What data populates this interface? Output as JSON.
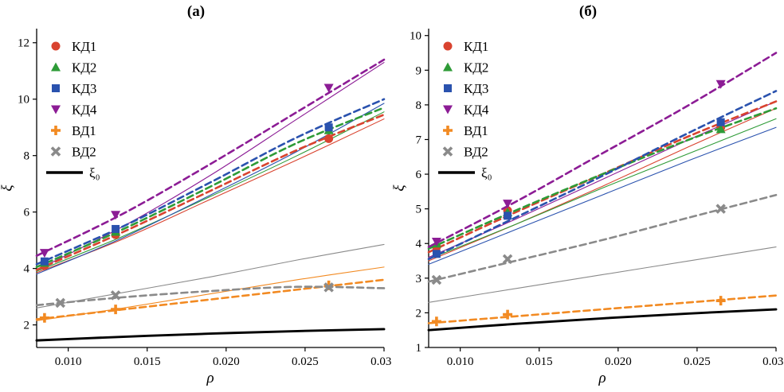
{
  "chart_data": [
    {
      "type": "line",
      "title": "(а)",
      "xlabel": "ρ",
      "ylabel": "ξ",
      "xlim": [
        0.008,
        0.03
      ],
      "ylim": [
        1.2,
        12.5
      ],
      "xticks": {
        "values": [
          0.01,
          0.015,
          0.02,
          0.025,
          0.03
        ],
        "labels": [
          "0.010",
          "0.015",
          "0.020",
          "0.025",
          "0.030"
        ]
      },
      "yticks": {
        "values": [
          2,
          4,
          6,
          8,
          10,
          12
        ],
        "labels": [
          "2",
          "4",
          "6",
          "8",
          "10",
          "12"
        ]
      },
      "grid": false,
      "legend_position": "top-left",
      "series": [
        {
          "id": "kd1-fit",
          "label": "",
          "color": "#d9432f",
          "style": "solid",
          "width": 1.1,
          "marker": "none",
          "in_legend": false,
          "x": [
            0.008,
            0.0135,
            0.019,
            0.0245,
            0.03
          ],
          "y": [
            3.85,
            5.05,
            6.45,
            7.85,
            9.3
          ]
        },
        {
          "id": "kd2-fit",
          "label": "",
          "color": "#2e9b37",
          "style": "solid",
          "width": 1.1,
          "marker": "none",
          "in_legend": false,
          "x": [
            0.008,
            0.0135,
            0.019,
            0.0245,
            0.03
          ],
          "y": [
            3.9,
            5.15,
            6.55,
            8.0,
            9.55
          ]
        },
        {
          "id": "kd3-fit",
          "label": "",
          "color": "#2a52ae",
          "style": "solid",
          "width": 1.1,
          "marker": "none",
          "in_legend": false,
          "x": [
            0.008,
            0.0135,
            0.019,
            0.0245,
            0.03
          ],
          "y": [
            3.8,
            5.1,
            6.6,
            8.15,
            9.85
          ]
        },
        {
          "id": "kd4-fit",
          "label": "",
          "color": "#8c1c95",
          "style": "solid",
          "width": 1.1,
          "marker": "none",
          "in_legend": false,
          "x": [
            0.008,
            0.0135,
            0.019,
            0.0245,
            0.03
          ],
          "y": [
            3.95,
            5.5,
            7.3,
            9.3,
            11.3
          ]
        },
        {
          "id": "vd1-fit",
          "label": "",
          "color": "#f28a22",
          "style": "solid",
          "width": 1.1,
          "marker": "none",
          "in_legend": false,
          "x": [
            0.008,
            0.0135,
            0.019,
            0.0245,
            0.03
          ],
          "y": [
            2.15,
            2.6,
            3.1,
            3.6,
            4.05
          ]
        },
        {
          "id": "vd2-fit",
          "label": "",
          "color": "#8a8a8a",
          "style": "solid",
          "width": 1.1,
          "marker": "none",
          "in_legend": false,
          "x": [
            0.008,
            0.0135,
            0.019,
            0.0245,
            0.03
          ],
          "y": [
            2.6,
            3.15,
            3.7,
            4.3,
            4.85
          ]
        },
        {
          "id": "kd1",
          "label": "КД1",
          "color": "#d9432f",
          "style": "dashed",
          "width": 2.6,
          "marker": "circle",
          "in_legend": true,
          "x": [
            0.008,
            0.0135,
            0.019,
            0.0245,
            0.03
          ],
          "y": [
            3.95,
            5.3,
            6.75,
            8.2,
            9.45
          ],
          "marker_points": {
            "x": [
              0.0085,
              0.013,
              0.0265
            ],
            "y": [
              4.1,
              5.2,
              8.6
            ]
          }
        },
        {
          "id": "kd2",
          "label": "КД2",
          "color": "#2e9b37",
          "style": "dashed",
          "width": 2.6,
          "marker": "triangle-up",
          "in_legend": true,
          "x": [
            0.008,
            0.0135,
            0.019,
            0.0245,
            0.03
          ],
          "y": [
            4.05,
            5.4,
            6.9,
            8.45,
            9.7
          ],
          "marker_points": {
            "x": [
              0.0085,
              0.013,
              0.0265
            ],
            "y": [
              4.2,
              5.3,
              8.9
            ]
          }
        },
        {
          "id": "kd3",
          "label": "КД3",
          "color": "#2a52ae",
          "style": "dashed",
          "width": 2.6,
          "marker": "square",
          "in_legend": true,
          "x": [
            0.008,
            0.0135,
            0.019,
            0.0245,
            0.03
          ],
          "y": [
            4.15,
            5.5,
            7.05,
            8.65,
            10.0
          ],
          "marker_points": {
            "x": [
              0.0085,
              0.013,
              0.0265
            ],
            "y": [
              4.25,
              5.4,
              9.0
            ]
          }
        },
        {
          "id": "kd4",
          "label": "КД4",
          "color": "#8c1c95",
          "style": "dashed",
          "width": 2.6,
          "marker": "triangle-down",
          "in_legend": true,
          "x": [
            0.008,
            0.0135,
            0.019,
            0.0245,
            0.03
          ],
          "y": [
            4.45,
            5.95,
            7.7,
            9.55,
            11.4
          ],
          "marker_points": {
            "x": [
              0.0085,
              0.013,
              0.0265
            ],
            "y": [
              4.55,
              5.9,
              10.4
            ]
          }
        },
        {
          "id": "vd1",
          "label": "ВД1",
          "color": "#f28a22",
          "style": "dashed",
          "width": 2.6,
          "marker": "plus",
          "in_legend": true,
          "x": [
            0.008,
            0.0135,
            0.019,
            0.0245,
            0.03
          ],
          "y": [
            2.2,
            2.55,
            2.9,
            3.25,
            3.6
          ],
          "marker_points": {
            "x": [
              0.0085,
              0.013,
              0.0265
            ],
            "y": [
              2.25,
              2.55,
              3.4
            ]
          }
        },
        {
          "id": "vd2",
          "label": "ВД2",
          "color": "#8a8a8a",
          "style": "dashed",
          "width": 2.6,
          "marker": "x",
          "in_legend": true,
          "x": [
            0.008,
            0.0135,
            0.019,
            0.0245,
            0.03
          ],
          "y": [
            2.7,
            2.98,
            3.2,
            3.35,
            3.3
          ],
          "marker_points": {
            "x": [
              0.0095,
              0.013,
              0.0265
            ],
            "y": [
              2.78,
              3.05,
              3.33
            ]
          }
        },
        {
          "id": "xi0",
          "label": "ξ₀",
          "color": "#000000",
          "style": "solid",
          "width": 2.9,
          "marker": "none",
          "in_legend": true,
          "legend_glyph": "line",
          "x": [
            0.008,
            0.0135,
            0.019,
            0.0245,
            0.03
          ],
          "y": [
            1.45,
            1.58,
            1.69,
            1.78,
            1.85
          ]
        }
      ]
    },
    {
      "type": "line",
      "title": "(б)",
      "xlabel": "ρ",
      "ylabel": "ξ",
      "xlim": [
        0.008,
        0.03
      ],
      "ylim": [
        1.0,
        10.2
      ],
      "xticks": {
        "values": [
          0.01,
          0.015,
          0.02,
          0.025,
          0.03
        ],
        "labels": [
          "0.010",
          "0.015",
          "0.020",
          "0.025",
          "0.030"
        ]
      },
      "yticks": {
        "values": [
          1,
          2,
          3,
          4,
          5,
          6,
          7,
          8,
          9,
          10
        ],
        "labels": [
          "1",
          "2",
          "3",
          "4",
          "5",
          "6",
          "7",
          "8",
          "9",
          "10"
        ]
      },
      "grid": false,
      "legend_position": "top-left",
      "series": [
        {
          "id": "kd1-fit",
          "label": "",
          "color": "#d9432f",
          "style": "solid",
          "width": 1.1,
          "marker": "none",
          "in_legend": false,
          "x": [
            0.008,
            0.0135,
            0.019,
            0.0245,
            0.03
          ],
          "y": [
            3.5,
            4.55,
            5.65,
            6.8,
            7.9
          ]
        },
        {
          "id": "kd2-fit",
          "label": "",
          "color": "#2e9b37",
          "style": "solid",
          "width": 1.1,
          "marker": "none",
          "in_legend": false,
          "x": [
            0.008,
            0.0135,
            0.019,
            0.0245,
            0.03
          ],
          "y": [
            3.55,
            4.55,
            5.6,
            6.6,
            7.6
          ]
        },
        {
          "id": "kd3-fit",
          "label": "",
          "color": "#2a52ae",
          "style": "solid",
          "width": 1.1,
          "marker": "none",
          "in_legend": false,
          "x": [
            0.008,
            0.0135,
            0.019,
            0.0245,
            0.03
          ],
          "y": [
            3.4,
            4.4,
            5.4,
            6.4,
            7.35
          ]
        },
        {
          "id": "kd4-fit",
          "label": "",
          "color": "#8c1c95",
          "style": "solid",
          "width": 1.1,
          "marker": "none",
          "in_legend": false,
          "x": [
            0.008,
            0.0135,
            0.019,
            0.0245,
            0.03
          ],
          "y": [
            3.6,
            4.7,
            5.85,
            7.0,
            8.1
          ]
        },
        {
          "id": "vd2-fit",
          "label": "",
          "color": "#8a8a8a",
          "style": "solid",
          "width": 1.1,
          "marker": "none",
          "in_legend": false,
          "x": [
            0.008,
            0.0135,
            0.019,
            0.0245,
            0.03
          ],
          "y": [
            2.3,
            2.7,
            3.1,
            3.5,
            3.9
          ]
        },
        {
          "id": "kd1",
          "label": "КД1",
          "color": "#d9432f",
          "style": "dashed",
          "width": 2.6,
          "marker": "circle",
          "in_legend": true,
          "x": [
            0.008,
            0.0135,
            0.019,
            0.0245,
            0.03
          ],
          "y": [
            3.75,
            4.9,
            6.0,
            7.1,
            8.1
          ],
          "marker_points": {
            "x": [
              0.0085,
              0.013,
              0.0265
            ],
            "y": [
              3.9,
              4.95,
              7.35
            ]
          }
        },
        {
          "id": "kd2",
          "label": "КД2",
          "color": "#2e9b37",
          "style": "dashed",
          "width": 2.6,
          "marker": "triangle-up",
          "in_legend": true,
          "x": [
            0.008,
            0.0135,
            0.019,
            0.0245,
            0.03
          ],
          "y": [
            3.85,
            4.95,
            6.0,
            7.0,
            7.9
          ],
          "marker_points": {
            "x": [
              0.0085,
              0.013,
              0.0265
            ],
            "y": [
              4.0,
              4.9,
              7.3
            ]
          }
        },
        {
          "id": "kd3",
          "label": "КД3",
          "color": "#2a52ae",
          "style": "dashed",
          "width": 2.6,
          "marker": "square",
          "in_legend": true,
          "x": [
            0.008,
            0.0135,
            0.019,
            0.0245,
            0.03
          ],
          "y": [
            3.55,
            4.75,
            5.95,
            7.2,
            8.4
          ],
          "marker_points": {
            "x": [
              0.0085,
              0.013,
              0.0265
            ],
            "y": [
              3.7,
              4.8,
              7.5
            ]
          }
        },
        {
          "id": "kd4",
          "label": "КД4",
          "color": "#8c1c95",
          "style": "dashed",
          "width": 2.6,
          "marker": "triangle-down",
          "in_legend": true,
          "x": [
            0.008,
            0.0135,
            0.019,
            0.0245,
            0.03
          ],
          "y": [
            3.9,
            5.2,
            6.6,
            8.0,
            9.5
          ],
          "marker_points": {
            "x": [
              0.0085,
              0.013,
              0.0265
            ],
            "y": [
              4.05,
              5.15,
              8.6
            ]
          }
        },
        {
          "id": "vd1",
          "label": "ВД1",
          "color": "#f28a22",
          "style": "dashed",
          "width": 2.6,
          "marker": "plus",
          "in_legend": true,
          "x": [
            0.008,
            0.0135,
            0.019,
            0.0245,
            0.03
          ],
          "y": [
            1.7,
            1.9,
            2.1,
            2.3,
            2.5
          ],
          "marker_points": {
            "x": [
              0.0085,
              0.013,
              0.0265
            ],
            "y": [
              1.75,
              1.95,
              2.35
            ]
          }
        },
        {
          "id": "vd2",
          "label": "ВД2",
          "color": "#8a8a8a",
          "style": "dashed",
          "width": 2.6,
          "marker": "x",
          "in_legend": true,
          "x": [
            0.008,
            0.0135,
            0.019,
            0.0245,
            0.03
          ],
          "y": [
            2.9,
            3.5,
            4.1,
            4.75,
            5.4
          ],
          "marker_points": {
            "x": [
              0.0085,
              0.013,
              0.0265
            ],
            "y": [
              2.95,
              3.55,
              5.0
            ]
          }
        },
        {
          "id": "xi0",
          "label": "ξ₀",
          "color": "#000000",
          "style": "solid",
          "width": 2.9,
          "marker": "none",
          "in_legend": true,
          "legend_glyph": "line",
          "x": [
            0.008,
            0.0135,
            0.019,
            0.0245,
            0.03
          ],
          "y": [
            1.5,
            1.68,
            1.84,
            1.98,
            2.1
          ]
        }
      ]
    }
  ]
}
